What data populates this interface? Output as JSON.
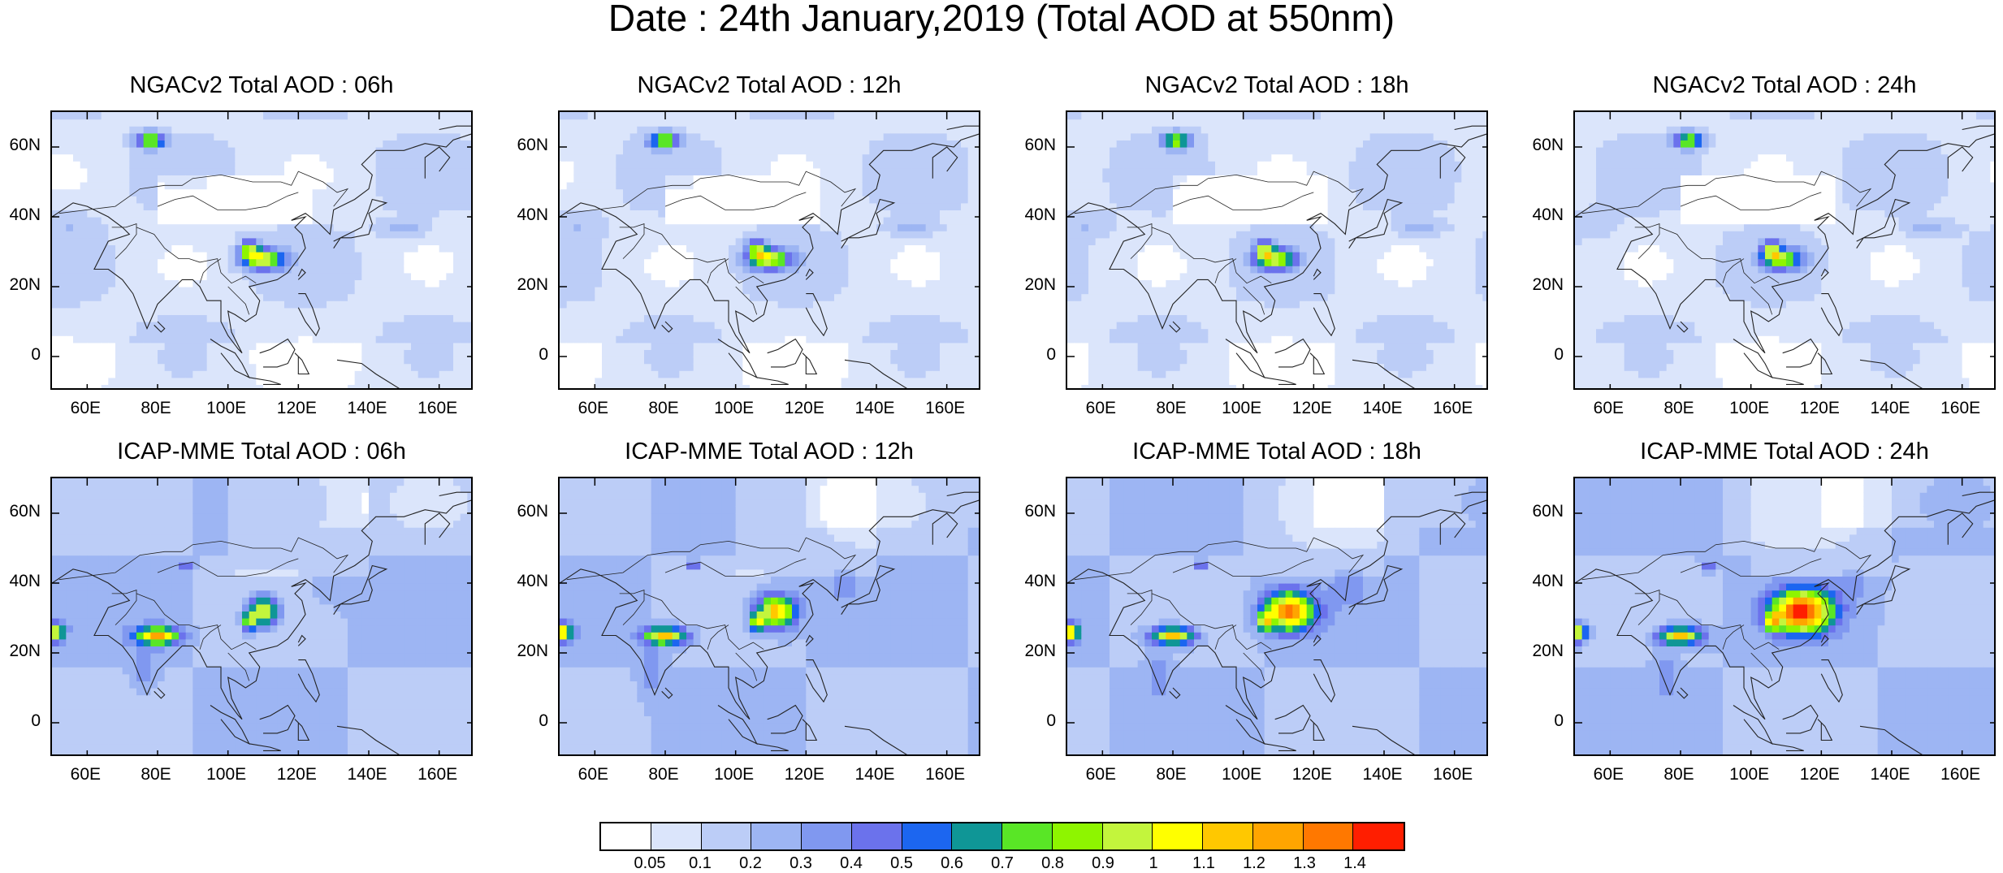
{
  "title": "Date : 24th January,2019 (Total AOD at 550nm)",
  "map_panels": [
    {
      "model": "NGACv2",
      "title": "NGACv2 Total AOD : 06h"
    },
    {
      "model": "NGACv2",
      "title": "NGACv2 Total AOD : 12h"
    },
    {
      "model": "NGACv2",
      "title": "NGACv2 Total AOD : 18h"
    },
    {
      "model": "NGACv2",
      "title": "NGACv2 Total AOD : 24h"
    },
    {
      "model": "ICAP-MME",
      "title": "ICAP-MME Total AOD : 06h"
    },
    {
      "model": "ICAP-MME",
      "title": "ICAP-MME Total AOD : 12h"
    },
    {
      "model": "ICAP-MME",
      "title": "ICAP-MME Total AOD : 18h"
    },
    {
      "model": "ICAP-MME",
      "title": "ICAP-MME Total AOD : 24h"
    }
  ],
  "axes": {
    "lat_range": [
      -10,
      70
    ],
    "lon_range": [
      50,
      170
    ],
    "lat_ticks": [
      "60N",
      "40N",
      "20N",
      "0"
    ],
    "lat_values": [
      60,
      40,
      20,
      0
    ],
    "lon_ticks": [
      "60E",
      "80E",
      "100E",
      "120E",
      "140E",
      "160E"
    ],
    "lon_values": [
      60,
      80,
      100,
      120,
      140,
      160
    ]
  },
  "colorbar": {
    "labels": [
      "0.05",
      "0.1",
      "0.2",
      "0.3",
      "0.4",
      "0.5",
      "0.6",
      "0.7",
      "0.8",
      "0.9",
      "1",
      "1.1",
      "1.2",
      "1.3",
      "1.4"
    ],
    "colors": [
      "#ffffff",
      "#dbe5fb",
      "#bccdf7",
      "#9db5f3",
      "#8098f0",
      "#6b72ec",
      "#1c66f0",
      "#0f9696",
      "#59e626",
      "#8ef500",
      "#c3f53c",
      "#ffff00",
      "#ffc800",
      "#ffa500",
      "#ff7800",
      "#ff1e00"
    ]
  }
}
